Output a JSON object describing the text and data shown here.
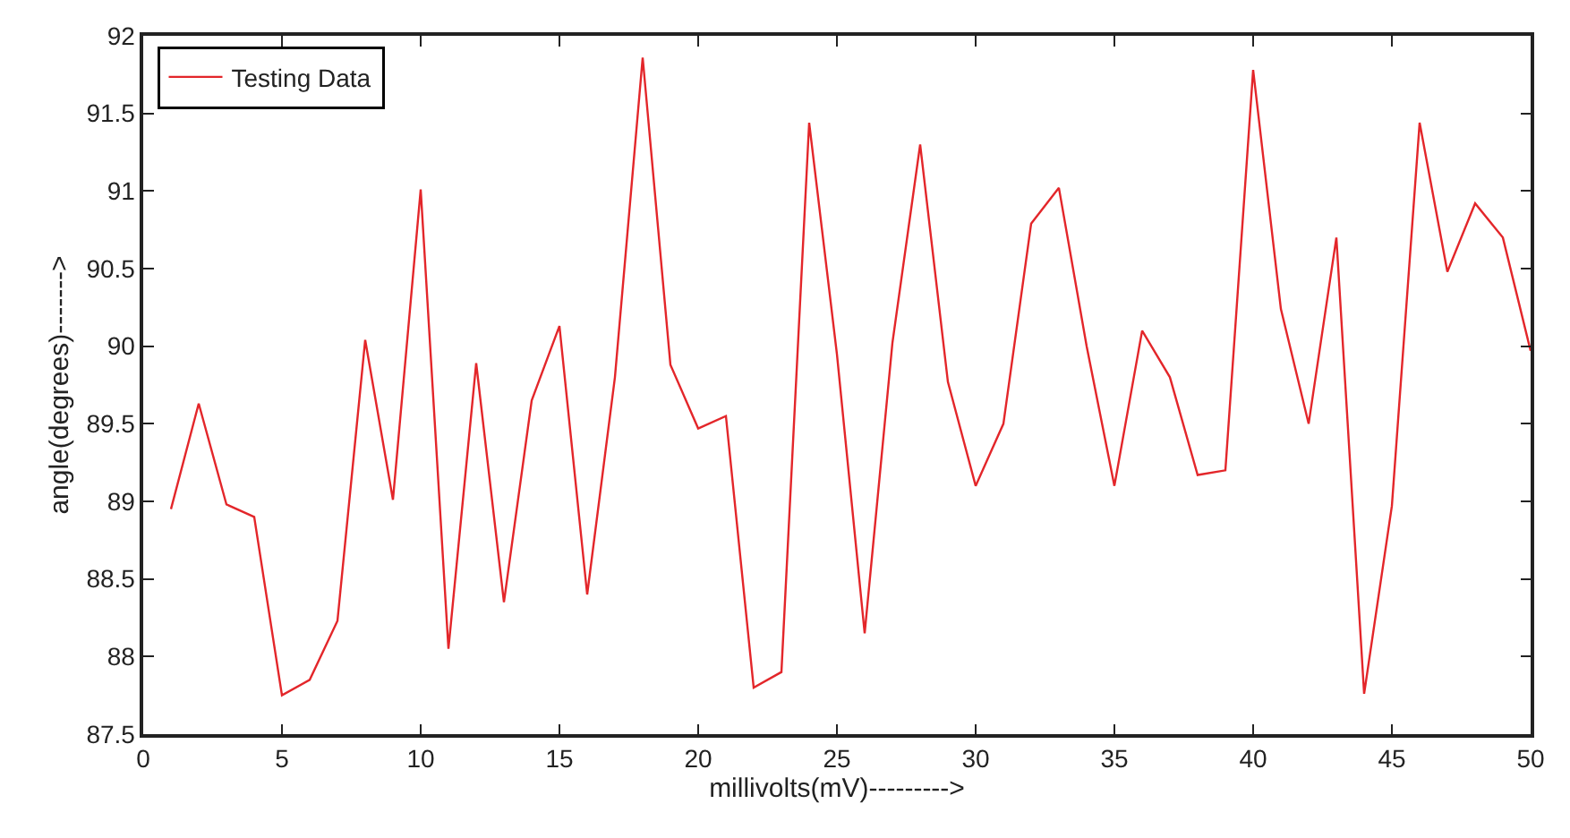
{
  "chart_data": {
    "type": "line",
    "xlabel": "millivolts(mV)--------->",
    "ylabel": "angle(degrees)------->",
    "x": [
      1,
      2,
      3,
      4,
      5,
      6,
      7,
      8,
      9,
      10,
      11,
      12,
      13,
      14,
      15,
      16,
      17,
      18,
      19,
      20,
      21,
      22,
      23,
      24,
      25,
      26,
      27,
      28,
      29,
      30,
      31,
      32,
      33,
      34,
      35,
      36,
      37,
      38,
      39,
      40,
      41,
      42,
      43,
      44,
      45,
      46,
      47,
      48,
      49,
      50
    ],
    "series": [
      {
        "name": "Testing Data",
        "color": "#e3262a",
        "values": [
          88.95,
          89.63,
          88.98,
          88.9,
          87.75,
          87.85,
          88.23,
          90.04,
          89.01,
          91.01,
          88.05,
          89.89,
          88.35,
          89.65,
          90.13,
          88.4,
          89.8,
          91.86,
          89.88,
          89.47,
          89.55,
          87.8,
          87.9,
          91.44,
          89.95,
          88.15,
          90.02,
          91.3,
          89.77,
          89.1,
          89.5,
          90.79,
          91.02,
          90.0,
          89.1,
          90.1,
          89.8,
          89.17,
          89.2,
          91.78,
          90.24,
          89.5,
          90.7,
          87.76,
          88.97,
          91.44,
          90.48,
          90.92,
          90.7,
          89.97
        ]
      }
    ],
    "xlim": [
      0,
      50
    ],
    "xticks": [
      0,
      5,
      10,
      15,
      20,
      25,
      30,
      35,
      40,
      45,
      50
    ],
    "ylim": [
      87.5,
      92
    ],
    "yticks": [
      87.5,
      88,
      88.5,
      89,
      89.5,
      90,
      90.5,
      91,
      91.5,
      92
    ],
    "grid": false,
    "legend": "top left",
    "line_style": "solid",
    "marker": "none"
  }
}
